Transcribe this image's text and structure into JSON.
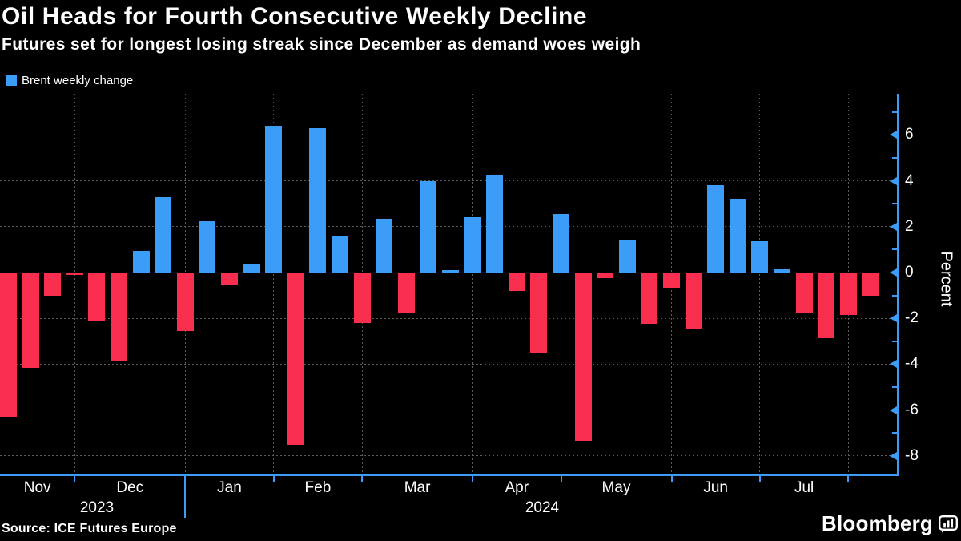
{
  "header": {
    "title": "Oil Heads for Fourth Consecutive Weekly Decline",
    "subtitle": "Futures set for longest losing streak since December as demand woes weigh"
  },
  "legend": {
    "label": "Brent weekly change",
    "swatch_color": "#3C9DF8"
  },
  "footer": {
    "source": "Source: ICE Futures Europe",
    "brand": "Bloomberg",
    "brand_icon": "bar-chart-bubble-icon"
  },
  "chart_data": {
    "type": "bar",
    "series_name": "Brent weekly change",
    "x_unit": "week",
    "value_unit": "percent weekly change",
    "values": [
      -6.3,
      -4.15,
      -1.0,
      -0.1,
      -2.1,
      -3.85,
      0.95,
      3.3,
      -2.55,
      2.25,
      -0.55,
      0.35,
      6.4,
      -7.5,
      6.3,
      1.6,
      -2.2,
      2.35,
      -1.8,
      4.0,
      0.1,
      2.4,
      4.25,
      -0.8,
      -3.5,
      2.55,
      -7.35,
      -0.25,
      1.4,
      -2.25,
      -0.65,
      -2.45,
      3.8,
      3.2,
      1.35,
      0.15,
      -1.8,
      -2.85,
      -1.85,
      -1.0
    ],
    "months": [
      {
        "label": "Nov",
        "weeks": 3
      },
      {
        "label": "Dec",
        "weeks": 5,
        "year_boundary_after": true
      },
      {
        "label": "Jan",
        "weeks": 4
      },
      {
        "label": "Feb",
        "weeks": 4
      },
      {
        "label": "Mar",
        "weeks": 5
      },
      {
        "label": "Apr",
        "weeks": 4
      },
      {
        "label": "May",
        "weeks": 5
      },
      {
        "label": "Jun",
        "weeks": 4
      },
      {
        "label": "Jul",
        "weeks": 4
      },
      {
        "label": "",
        "weeks": 2
      }
    ],
    "years": [
      {
        "label": "2023",
        "x": 121
      },
      {
        "label": "2024",
        "x": 677
      }
    ],
    "ylabel": "Percent",
    "yticks_major": [
      6,
      4,
      2,
      0,
      -2,
      -4,
      -6,
      -8
    ],
    "yticks_minor": [
      7,
      5,
      3,
      1,
      -1,
      -3,
      -5,
      -7
    ],
    "ylim": [
      -8.85,
      7.8
    ],
    "grid": true,
    "legend_position": "top-left",
    "colors": {
      "positive_bar": "#3C9DF8",
      "negative_bar": "#F92D4E",
      "axis": "#3C9DF8",
      "gridline": "#5c5c5c",
      "background": "#000000",
      "text": "#ffffff"
    }
  }
}
